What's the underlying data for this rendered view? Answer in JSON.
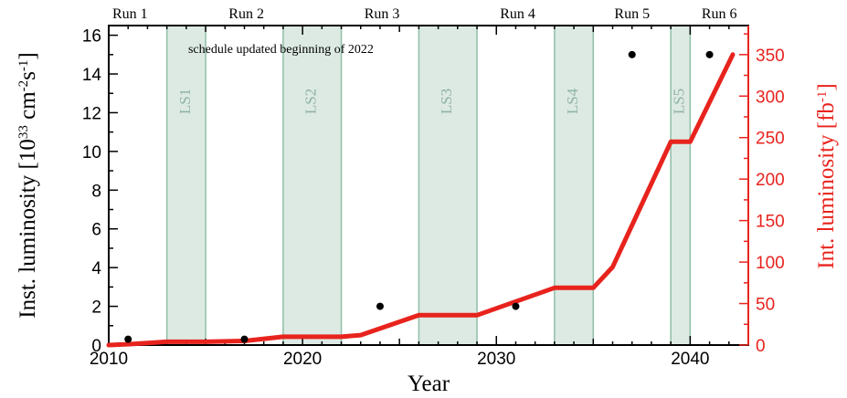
{
  "chart_data": {
    "type": "line",
    "annotation": "schedule updated beginning of 2022",
    "xlabel": "Year",
    "ylabel_left": [
      "Inst. luminosity [10",
      "33",
      " cm",
      "-2",
      "s",
      "-1",
      "]"
    ],
    "ylabel_right": [
      "Int. luminosity [fb",
      "-1",
      "]"
    ],
    "xlim": [
      2010,
      2043
    ],
    "ylim_left": [
      0,
      16.5
    ],
    "ylim_right": [
      0,
      385
    ],
    "x_ticks": [
      2010,
      2020,
      2030,
      2040
    ],
    "y_ticks_left": [
      0,
      2,
      4,
      6,
      8,
      10,
      12,
      14,
      16
    ],
    "y_ticks_right": [
      0,
      50,
      100,
      150,
      200,
      250,
      300,
      350
    ],
    "runs": [
      {
        "label": "Run 1",
        "x": 2011.1
      },
      {
        "label": "Run 2",
        "x": 2017.1
      },
      {
        "label": "Run 3",
        "x": 2024.1
      },
      {
        "label": "Run 4",
        "x": 2031.1
      },
      {
        "label": "Run 5",
        "x": 2037.0
      },
      {
        "label": "Run 6",
        "x": 2041.5
      }
    ],
    "shutdowns": [
      {
        "label": "LS1",
        "start": 2013,
        "end": 2015
      },
      {
        "label": "LS2",
        "start": 2019,
        "end": 2022
      },
      {
        "label": "LS3",
        "start": 2026,
        "end": 2029
      },
      {
        "label": "LS4",
        "start": 2033,
        "end": 2035
      },
      {
        "label": "LS5",
        "start": 2039,
        "end": 2040
      }
    ],
    "series": [
      {
        "name": "Inst. luminosity",
        "axis": "left",
        "style": "points",
        "color": "#000000",
        "x": [
          2011,
          2017,
          2024,
          2031,
          2037,
          2041
        ],
        "y": [
          0.3,
          0.3,
          2.0,
          2.0,
          15.0,
          15.0
        ]
      },
      {
        "name": "Int. luminosity",
        "axis": "right",
        "style": "line",
        "color": "#e8231d",
        "x": [
          2010,
          2011,
          2013,
          2015,
          2017,
          2019,
          2022,
          2023,
          2026,
          2029,
          2033,
          2035,
          2036,
          2039,
          2040,
          2042.2
        ],
        "y": [
          0,
          1,
          4,
          4,
          5,
          10,
          10,
          12,
          36,
          36,
          69,
          69,
          94,
          245,
          245,
          350
        ]
      }
    ],
    "colors": {
      "shutdown_fill": "#ddeae3",
      "shutdown_edge": "#8fbfa6",
      "right_axis": "#e8231d"
    }
  }
}
